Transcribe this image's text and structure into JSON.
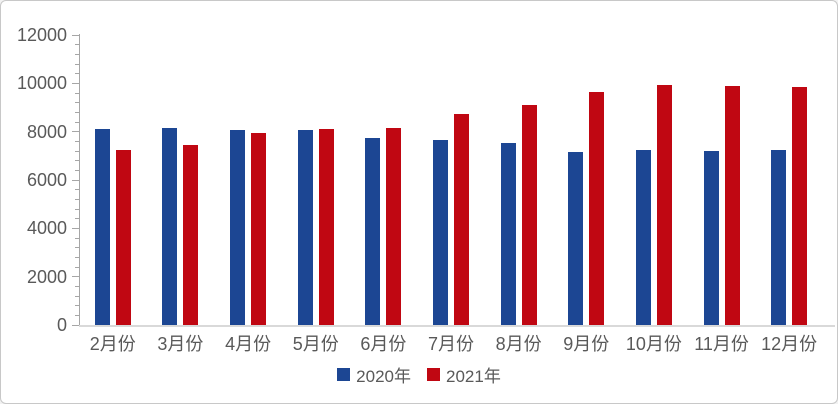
{
  "chart": {
    "background": "#ffffff",
    "border_color": "#c8c8c8",
    "text_color": "#595959",
    "axis_color": "#a6a6a6",
    "baseline_color": "#d9d9d9"
  },
  "chart_data": {
    "type": "bar",
    "title": "",
    "xlabel": "",
    "ylabel": "",
    "categories": [
      "2月份",
      "3月份",
      "4月份",
      "5月份",
      "6月份",
      "7月份",
      "8月份",
      "9月份",
      "10月份",
      "11月份",
      "12月份"
    ],
    "series": [
      {
        "name": "2020年",
        "color": "#1c4693",
        "values": [
          8100,
          8150,
          8050,
          8050,
          7750,
          7650,
          7550,
          7150,
          7250,
          7200,
          7250
        ]
      },
      {
        "name": "2021年",
        "color": "#c00712",
        "values": [
          7250,
          7450,
          7950,
          8100,
          8150,
          8750,
          9100,
          9650,
          9950,
          9900,
          9850
        ]
      }
    ],
    "ylim": [
      0,
      12000
    ],
    "yticks": [
      "0",
      "2000",
      "4000",
      "6000",
      "8000",
      "10000",
      "12000"
    ],
    "minor_tick_step": 400,
    "grid": false,
    "legend_position": "bottom-center"
  }
}
